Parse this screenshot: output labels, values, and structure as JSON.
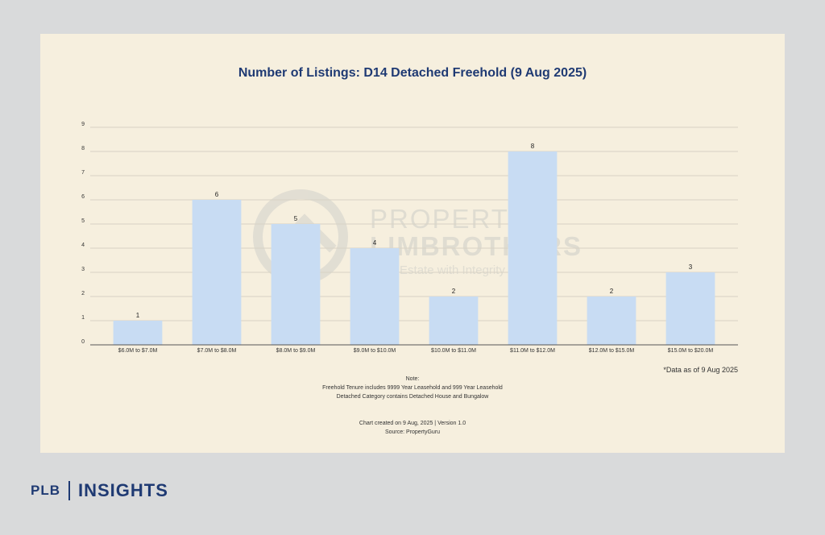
{
  "chart_data": {
    "type": "bar",
    "title": "Number of Listings: D14 Detached Freehold (9 Aug 2025)",
    "categories": [
      "$6.0M to $7.0M",
      "$7.0M to $8.0M",
      "$8.0M to $9.0M",
      "$9.0M to $10.0M",
      "$10.0M to $11.0M",
      "$11.0M to $12.0M",
      "$12.0M to $15.0M",
      "$15.0M to $20.0M"
    ],
    "values": [
      1,
      6,
      5,
      4,
      2,
      8,
      2,
      3
    ],
    "y_ticks": [
      "0",
      "1",
      "2",
      "3",
      "4",
      "5",
      "6",
      "7",
      "8",
      "9"
    ],
    "ylim": [
      0,
      9
    ],
    "xlabel": "",
    "ylabel": "",
    "grid": true,
    "data_labels": true,
    "bar_color": "#c8dcf3",
    "title_color": "#1f3a73"
  },
  "watermark": {
    "line1": "PROPERTY",
    "line2": "LIMBROTHERS",
    "tagline": "Real Estate with Integrity",
    "logo_icon": "house-roof-circle-icon"
  },
  "data_note": "*Data as of 9 Aug 2025",
  "notes": {
    "heading": "Note:",
    "line1": "Freehold Tenure includes 9999 Year Leasehold and 999 Year Leasehold",
    "line2": "Detached Category contains Detached House and Bungalow"
  },
  "meta": {
    "created": "Chart created on 9 Aug, 2025 | Version 1.0",
    "source": "Source: PropertyGuru"
  },
  "brand": {
    "left": "PLB",
    "right": "INSIGHTS"
  }
}
